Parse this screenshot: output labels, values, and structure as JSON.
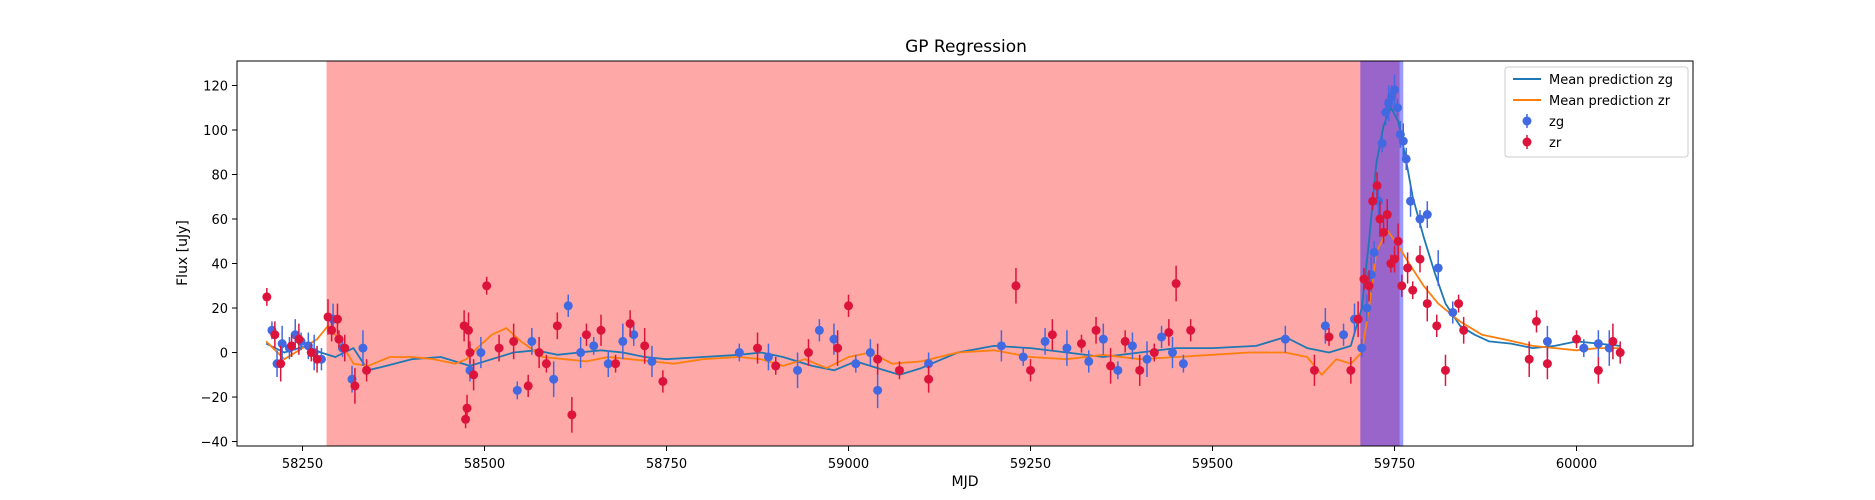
{
  "chart_data": {
    "type": "scatter",
    "title": "GP Regression",
    "xlabel": "MJD",
    "ylabel": "Flux [uJy]",
    "xlim": [
      58160,
      60160
    ],
    "ylim": [
      -42,
      131
    ],
    "grid": false,
    "legend_position": "top-right",
    "xticks": [
      58250,
      58500,
      58750,
      59000,
      59250,
      59500,
      59750,
      60000
    ],
    "yticks": [
      -40,
      -20,
      0,
      20,
      40,
      60,
      80,
      100,
      120
    ],
    "shaded_regions": [
      {
        "x0": 58283,
        "x1": 59757,
        "color": "#ff0000",
        "alpha": 0.34
      },
      {
        "x0": 59703,
        "x1": 59762,
        "color": "#0000ff",
        "alpha": 0.4
      }
    ],
    "legend": [
      {
        "label": "Mean prediction zg",
        "kind": "line",
        "color": "#1f77b4"
      },
      {
        "label": "Mean prediction zr",
        "kind": "line",
        "color": "#ff7f0e"
      },
      {
        "label": "zg",
        "kind": "marker",
        "color": "#4169e1"
      },
      {
        "label": "zr",
        "kind": "marker",
        "color": "#dc143c"
      }
    ],
    "series": [
      {
        "name": "Mean prediction zg",
        "kind": "line",
        "color": "#1f77b4",
        "x": [
          58200,
          58225,
          58255,
          58275,
          58295,
          58320,
          58340,
          58365,
          58400,
          58440,
          58480,
          58510,
          58540,
          58570,
          58600,
          58630,
          58660,
          58690,
          58720,
          58750,
          58800,
          58850,
          58880,
          58910,
          58950,
          58980,
          59010,
          59040,
          59070,
          59100,
          59150,
          59200,
          59250,
          59300,
          59350,
          59400,
          59450,
          59500,
          59560,
          59600,
          59630,
          59660,
          59690,
          59705,
          59715,
          59725,
          59735,
          59745,
          59755,
          59765,
          59775,
          59790,
          59805,
          59820,
          59840,
          59860,
          59880,
          59910,
          59940,
          59970,
          60000,
          60030,
          60060
        ],
        "y": [
          4,
          0,
          3,
          0,
          -2,
          2,
          -8,
          -6,
          -3,
          -2,
          -6,
          -3,
          0,
          1,
          -1,
          0,
          1,
          0,
          -2,
          -3,
          -2,
          -1,
          0,
          -2,
          -6,
          -8,
          -4,
          -7,
          -10,
          -7,
          0,
          3,
          2,
          0,
          -2,
          0,
          2,
          2,
          3,
          7,
          2,
          0,
          3,
          20,
          50,
          85,
          102,
          110,
          104,
          88,
          70,
          52,
          36,
          22,
          12,
          8,
          5,
          4,
          2,
          3,
          5,
          4,
          3
        ]
      },
      {
        "name": "Mean prediction zr",
        "kind": "line",
        "color": "#ff7f0e",
        "x": [
          58200,
          58225,
          58250,
          58270,
          58285,
          58300,
          58320,
          58340,
          58370,
          58400,
          58430,
          58460,
          58475,
          58490,
          58510,
          58530,
          58550,
          58580,
          58610,
          58640,
          58670,
          58700,
          58730,
          58760,
          58800,
          58850,
          58880,
          58910,
          58940,
          58970,
          59000,
          59030,
          59060,
          59100,
          59150,
          59200,
          59250,
          59300,
          59350,
          59400,
          59450,
          59500,
          59550,
          59600,
          59630,
          59650,
          59670,
          59690,
          59705,
          59715,
          59725,
          59740,
          59755,
          59770,
          59790,
          59810,
          59840,
          59870,
          59900,
          59940,
          59970,
          60000,
          60030,
          60060
        ],
        "y": [
          5,
          -3,
          2,
          6,
          12,
          6,
          -5,
          -6,
          -2,
          -2,
          -3,
          -5,
          -3,
          2,
          8,
          11,
          5,
          -2,
          -3,
          -4,
          -2,
          -3,
          -4,
          -5,
          -3,
          -2,
          -3,
          -6,
          -3,
          -7,
          -2,
          0,
          -5,
          -4,
          0,
          1,
          -2,
          -3,
          -1,
          -3,
          -2,
          -1,
          0,
          0,
          -2,
          -10,
          -3,
          -5,
          0,
          20,
          45,
          55,
          48,
          40,
          30,
          22,
          14,
          8,
          6,
          3,
          2,
          1,
          2,
          2
        ]
      },
      {
        "name": "zg",
        "kind": "scatter",
        "color": "#4169e1",
        "x": [
          58208,
          58215,
          58222,
          58232,
          58240,
          58248,
          58258,
          58266,
          58276,
          58292,
          58305,
          58318,
          58333,
          58480,
          58495,
          58545,
          58565,
          58595,
          58615,
          58632,
          58650,
          58670,
          58690,
          58705,
          58730,
          58850,
          58890,
          58930,
          58960,
          58980,
          59010,
          59030,
          59040,
          59110,
          59210,
          59240,
          59270,
          59300,
          59330,
          59350,
          59370,
          59390,
          59410,
          59430,
          59445,
          59460,
          59600,
          59655,
          59680,
          59695,
          59705,
          59712,
          59718,
          59722,
          59728,
          59733,
          59738,
          59742,
          59746,
          59750,
          59754,
          59758,
          59762,
          59766,
          59772,
          59785,
          59795,
          59810,
          59830,
          59960,
          60010,
          60030,
          60045
        ],
        "y": [
          10,
          -5,
          4,
          2,
          8,
          5,
          3,
          0,
          -3,
          15,
          2,
          -12,
          2,
          -8,
          0,
          -17,
          5,
          -12,
          21,
          0,
          3,
          -5,
          5,
          8,
          -4,
          0,
          -2,
          -8,
          10,
          6,
          -5,
          0,
          -17,
          -5,
          3,
          -2,
          5,
          2,
          -4,
          6,
          -8,
          3,
          -3,
          7,
          0,
          -5,
          6,
          12,
          8,
          15,
          2,
          20,
          35,
          45,
          68,
          94,
          108,
          112,
          115,
          118,
          110,
          98,
          95,
          87,
          68,
          60,
          62,
          38,
          18,
          5,
          2,
          4,
          2
        ]
      },
      {
        "name": "zr",
        "kind": "scatter",
        "color": "#dc143c",
        "x": [
          58201,
          58212,
          58220,
          58235,
          58245,
          58262,
          58270,
          58285,
          58290,
          58298,
          58300,
          58308,
          58322,
          58338,
          58472,
          58474,
          58476,
          58478,
          58480,
          58485,
          58503,
          58520,
          58540,
          58560,
          58575,
          58585,
          58600,
          58620,
          58640,
          58660,
          58680,
          58700,
          58720,
          58745,
          58875,
          58900,
          58945,
          58985,
          59000,
          59040,
          59070,
          59110,
          59230,
          59250,
          59280,
          59320,
          59340,
          59360,
          59380,
          59400,
          59420,
          59440,
          59450,
          59470,
          59640,
          59660,
          59690,
          59700,
          59708,
          59715,
          59720,
          59726,
          59730,
          59735,
          59740,
          59745,
          59750,
          59755,
          59760,
          59768,
          59775,
          59785,
          59795,
          59808,
          59820,
          59838,
          59845,
          59935,
          59945,
          59960,
          60000,
          60030,
          60050,
          60060
        ],
        "y": [
          25,
          8,
          -5,
          3,
          6,
          0,
          -3,
          16,
          10,
          15,
          6,
          2,
          -15,
          -8,
          12,
          -30,
          -25,
          10,
          0,
          -10,
          30,
          2,
          5,
          -15,
          0,
          -5,
          12,
          -28,
          8,
          10,
          -5,
          13,
          3,
          -13,
          2,
          -6,
          0,
          2,
          21,
          -3,
          -8,
          -12,
          30,
          -8,
          8,
          4,
          10,
          -6,
          5,
          -8,
          0,
          9,
          31,
          10,
          -8,
          7,
          -8,
          15,
          33,
          30,
          68,
          75,
          60,
          54,
          62,
          40,
          42,
          50,
          30,
          38,
          28,
          42,
          22,
          12,
          -8,
          22,
          10,
          -3,
          14,
          -5,
          6,
          -8,
          5,
          0
        ]
      }
    ]
  }
}
